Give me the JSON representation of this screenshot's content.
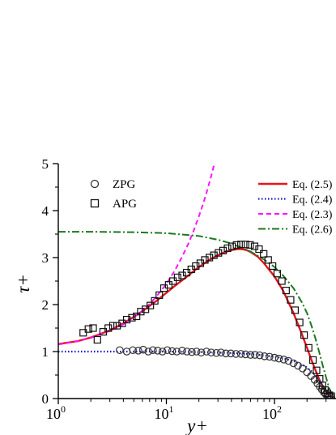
{
  "chart_data": {
    "type": "line",
    "xlabel": "y+",
    "ylabel": "τ+",
    "x_scale": "log",
    "xlim": [
      1,
      400
    ],
    "ylim": [
      0,
      5
    ],
    "grid": false,
    "x_ticks": [
      {
        "value": 1,
        "base": "10",
        "exp": "0"
      },
      {
        "value": 10,
        "base": "10",
        "exp": "1"
      },
      {
        "value": 100,
        "base": "10",
        "exp": "2"
      }
    ],
    "y_ticks": [
      "0",
      "1",
      "2",
      "3",
      "4",
      "5"
    ],
    "legend_left_placement": "top-left",
    "legend_right_placement": "top-right",
    "colors": {
      "eq25": "#e8141c",
      "eq24": "#1414cc",
      "eq23": "#ff14ff",
      "eq26": "#1e781e",
      "markers": "#333333"
    },
    "series": [
      {
        "name": "ZPG",
        "kind": "scatter",
        "marker": "circle",
        "x": [
          3.7,
          4.3,
          4.9,
          5.5,
          6.1,
          6.8,
          7.5,
          8.3,
          9.2,
          10.2,
          11.3,
          12.5,
          14,
          15.5,
          17.2,
          19,
          21,
          23.5,
          26,
          29,
          32,
          35.5,
          39.5,
          44,
          49,
          54,
          60,
          66,
          73,
          81,
          90,
          100,
          110,
          122,
          135,
          150,
          165,
          182,
          200,
          218,
          235,
          250,
          263,
          275,
          287,
          298,
          310,
          322,
          335
        ],
        "y": [
          1.03,
          1.0,
          1.03,
          1.02,
          1.04,
          1.0,
          1.03,
          1.02,
          1.0,
          1.03,
          1.01,
          1.0,
          1.02,
          1.0,
          0.99,
          1.0,
          0.98,
          1.0,
          0.98,
          0.97,
          0.98,
          0.96,
          0.96,
          0.95,
          0.95,
          0.94,
          0.93,
          0.93,
          0.92,
          0.9,
          0.89,
          0.87,
          0.85,
          0.83,
          0.8,
          0.75,
          0.7,
          0.64,
          0.56,
          0.48,
          0.4,
          0.32,
          0.25,
          0.19,
          0.13,
          0.09,
          0.06,
          0.04,
          0.03
        ]
      },
      {
        "name": "APG",
        "kind": "scatter",
        "marker": "square",
        "x": [
          1.7,
          1.9,
          2.1,
          2.3,
          2.6,
          2.9,
          3.2,
          3.5,
          3.9,
          4.3,
          4.8,
          5.3,
          5.8,
          6.4,
          7.1,
          7.8,
          8.6,
          9.5,
          10.5,
          11.5,
          12.7,
          14,
          15.4,
          17,
          18.7,
          20.6,
          22.7,
          25,
          27.5,
          30.3,
          33.4,
          36.8,
          40.5,
          44.6,
          49,
          54,
          59.5,
          65.5,
          72,
          79.5,
          87.5,
          96,
          106,
          117,
          128,
          141,
          155,
          171,
          188,
          207,
          227,
          245,
          262,
          278,
          293,
          308,
          322,
          335
        ],
        "y": [
          1.4,
          1.48,
          1.5,
          1.25,
          1.42,
          1.5,
          1.55,
          1.55,
          1.6,
          1.68,
          1.72,
          1.75,
          1.85,
          1.9,
          1.98,
          2.08,
          2.2,
          2.35,
          2.42,
          2.5,
          2.58,
          2.62,
          2.68,
          2.75,
          2.82,
          2.88,
          2.95,
          3.0,
          3.05,
          3.1,
          3.15,
          3.2,
          3.24,
          3.27,
          3.28,
          3.28,
          3.27,
          3.24,
          3.18,
          3.08,
          2.95,
          2.82,
          2.66,
          2.5,
          2.3,
          2.1,
          1.88,
          1.62,
          1.35,
          1.08,
          0.82,
          0.6,
          0.42,
          0.28,
          0.18,
          0.11,
          0.07,
          0.05
        ]
      },
      {
        "name": "Eq. (2.5)",
        "kind": "line",
        "dash": "solid",
        "x": [
          1,
          1.5,
          2,
          3,
          4,
          5,
          6,
          8,
          10,
          12,
          15,
          20,
          25,
          30,
          35,
          40,
          45,
          50,
          55,
          60,
          70,
          80,
          100,
          120,
          150,
          180,
          200,
          220,
          240,
          260,
          280,
          300,
          320,
          340,
          360
        ],
        "y": [
          1.16,
          1.22,
          1.3,
          1.45,
          1.6,
          1.74,
          1.86,
          2.07,
          2.25,
          2.4,
          2.57,
          2.8,
          2.95,
          3.05,
          3.12,
          3.16,
          3.18,
          3.18,
          3.16,
          3.12,
          3.02,
          2.88,
          2.6,
          2.3,
          1.82,
          1.36,
          1.08,
          0.82,
          0.6,
          0.4,
          0.25,
          0.14,
          0.06,
          0.02,
          0.0
        ]
      },
      {
        "name": "Eq. (2.4)",
        "kind": "line",
        "dash": "dotted",
        "x": [
          1,
          2,
          5,
          10,
          20,
          40,
          60,
          80,
          100,
          120,
          150,
          180,
          200,
          220,
          240,
          260,
          280,
          300,
          320,
          340,
          360
        ],
        "y": [
          1.0,
          1.0,
          1.0,
          1.0,
          0.99,
          0.97,
          0.95,
          0.92,
          0.89,
          0.86,
          0.8,
          0.72,
          0.66,
          0.58,
          0.49,
          0.39,
          0.28,
          0.18,
          0.1,
          0.04,
          0.0
        ]
      },
      {
        "name": "Eq. (2.3)",
        "kind": "line",
        "dash": "dashed",
        "x": [
          1,
          1.5,
          2,
          3,
          4,
          5,
          6,
          7,
          8,
          10,
          12,
          14,
          16,
          18,
          20,
          22,
          24,
          26,
          28.5
        ],
        "y": [
          1.15,
          1.22,
          1.29,
          1.44,
          1.58,
          1.73,
          1.87,
          2.01,
          2.16,
          2.44,
          2.73,
          3.02,
          3.3,
          3.59,
          3.88,
          4.16,
          4.45,
          4.74,
          5.1
        ]
      },
      {
        "name": "Eq. (2.6)",
        "kind": "line",
        "dash": "dashdot",
        "x": [
          1,
          2,
          5,
          10,
          20,
          30,
          40,
          60,
          80,
          100,
          120,
          150,
          180,
          200,
          220,
          240,
          260,
          280,
          300,
          320,
          340,
          360
        ],
        "y": [
          3.55,
          3.55,
          3.54,
          3.52,
          3.46,
          3.38,
          3.3,
          3.13,
          2.96,
          2.8,
          2.62,
          2.35,
          2.04,
          1.82,
          1.55,
          1.27,
          0.98,
          0.7,
          0.45,
          0.23,
          0.08,
          0.0
        ]
      }
    ]
  }
}
